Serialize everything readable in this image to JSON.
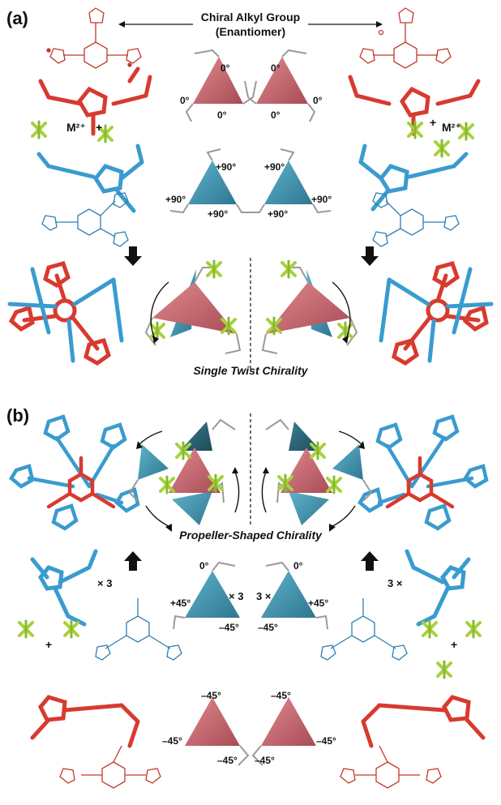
{
  "panel_a": {
    "label": "(a)",
    "title_line1": "Chiral Alkyl Group",
    "title_line2": "(Enantiomer)",
    "metal_left": "M²⁺",
    "plus_left": "+",
    "metal_right": "M²⁺",
    "plus_right": "+",
    "angle_zero": "0°",
    "angle_plus90": "+90°",
    "caption": "Single Twist Chirality"
  },
  "panel_b": {
    "label": "(b)",
    "caption": "Propeller-Shaped Chirality",
    "times3_left": "× 3",
    "times3_mid_left": "× 3",
    "times3_mid_right": "3 ×",
    "times3_right": "3 ×",
    "plus_left": "+",
    "plus_right": "+",
    "angle_zero": "0°",
    "angle_plus45": "+45°",
    "angle_minus45": "–45°"
  },
  "colors": {
    "red": "#d83a2f",
    "blue": "#3a9bcf",
    "pink_triangle": "#c86a72",
    "teal_triangle": "#3f8ea8",
    "dark_teal": "#2a6378",
    "metal_green": "#a6d23a",
    "arm_gray": "#9a9a9a"
  }
}
